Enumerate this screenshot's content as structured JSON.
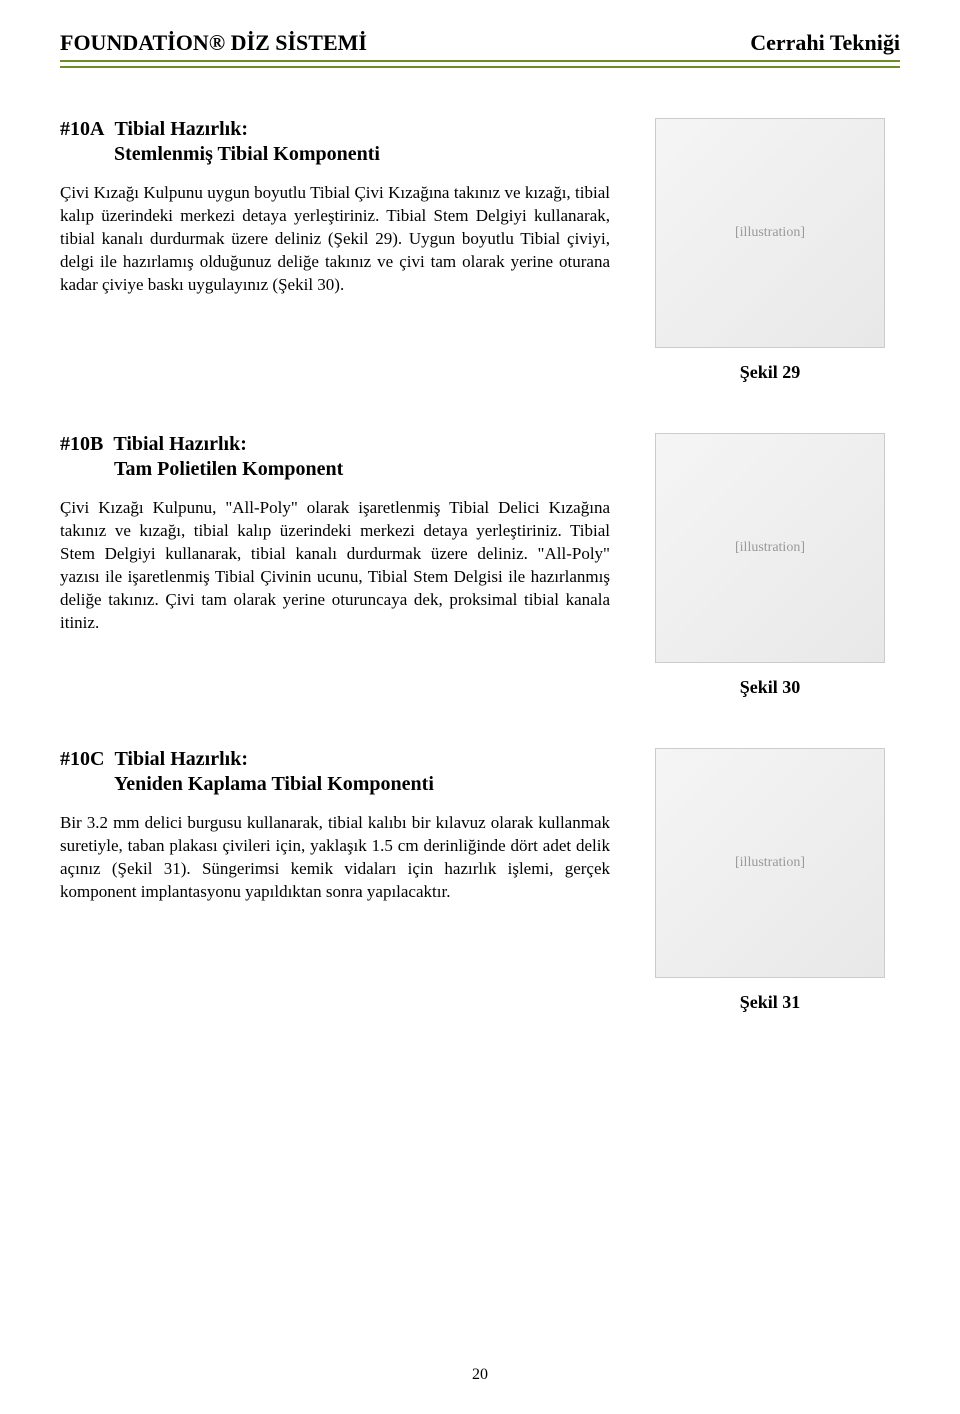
{
  "header": {
    "left": "FOUNDATİON® DİZ SİSTEMİ",
    "right": "Cerrahi Tekniği",
    "underline_color": "#6b8e23"
  },
  "sections": [
    {
      "num": "#10A",
      "title": "Tibial Hazırlık:",
      "subtitle": "Stemlenmiş Tibial Komponenti",
      "body": "Çivi Kızağı Kulpunu uygun boyutlu Tibial Çivi Kızağına takınız ve kızağı, tibial kalıp üzerindeki merkezi detaya yerleştiriniz. Tibial Stem Delgiyi kullanarak, tibial kanalı durdurmak üzere deliniz (Şekil 29). Uygun boyutlu Tibial çiviyi, delgi ile hazırlamış olduğunuz deliğe takınız ve çivi tam olarak yerine oturana kadar çiviye baskı uygulayınız (Şekil 30).",
      "figure_label": "Şekil 29",
      "figure_alt": "[illustration]"
    },
    {
      "num": "#10B",
      "title": "Tibial Hazırlık:",
      "subtitle": "Tam Polietilen Komponent",
      "body": "Çivi Kızağı Kulpunu, \"All-Poly\" olarak işaretlenmiş Tibial Delici Kızağına takınız ve kızağı, tibial kalıp üzerindeki merkezi detaya yerleştiriniz. Tibial Stem Delgiyi kullanarak, tibial kanalı durdurmak üzere deliniz. \"All-Poly\" yazısı ile işaretlenmiş Tibial Çivinin ucunu, Tibial Stem Delgisi ile hazırlanmış deliğe takınız. Çivi tam olarak yerine oturuncaya dek, proksimal tibial kanala itiniz.",
      "figure_label": "Şekil 30",
      "figure_alt": "[illustration]"
    },
    {
      "num": "#10C",
      "title": "Tibial Hazırlık:",
      "subtitle": "Yeniden Kaplama Tibial Komponenti",
      "body": "Bir 3.2 mm delici burgusu kullanarak, tibial kalıbı bir kılavuz olarak kullanmak suretiyle, taban plakası çivileri için, yaklaşık 1.5 cm derinliğinde dört adet delik açınız (Şekil 31). Süngerimsi kemik vidaları için hazırlık işlemi, gerçek komponent implantasyonu yapıldıktan sonra yapılacaktır.",
      "figure_label": "Şekil 31",
      "figure_alt": "[illustration]"
    }
  ],
  "page_number": "20",
  "colors": {
    "text": "#000000",
    "background": "#ffffff",
    "rule": "#6b8e23"
  },
  "typography": {
    "body_font": "Times New Roman",
    "header_fontsize_pt": 16,
    "title_fontsize_pt": 15,
    "body_fontsize_pt": 12
  }
}
